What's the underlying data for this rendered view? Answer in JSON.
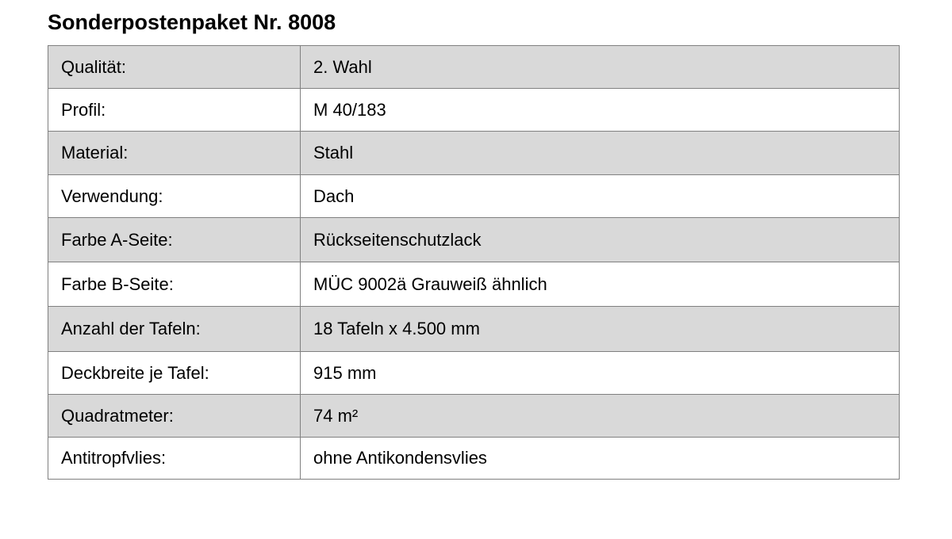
{
  "title": "Sonderpostenpaket Nr. 8008",
  "rows": [
    {
      "label": "Qualität:",
      "value": "2. Wahl"
    },
    {
      "label": "Profil:",
      "value": "M 40/183"
    },
    {
      "label": "Material:",
      "value": "Stahl"
    },
    {
      "label": "Verwendung:",
      "value": "Dach"
    },
    {
      "label": "Farbe A-Seite:",
      "value": "Rückseitenschutzlack"
    },
    {
      "label": "Farbe B-Seite:",
      "value": "MÜC 9002ä Grauweiß ähnlich"
    },
    {
      "label": "Anzahl der Tafeln:",
      "value": "18 Tafeln x 4.500 mm"
    },
    {
      "label": "Deckbreite je Tafel:",
      "value": "915 mm"
    },
    {
      "label": "Quadratmeter:",
      "value": "74 m²"
    },
    {
      "label": "Antitropfvlies:",
      "value": "ohne Antikondensvlies"
    }
  ],
  "colors": {
    "stripe": "#d9d9d9",
    "border": "#808080"
  }
}
